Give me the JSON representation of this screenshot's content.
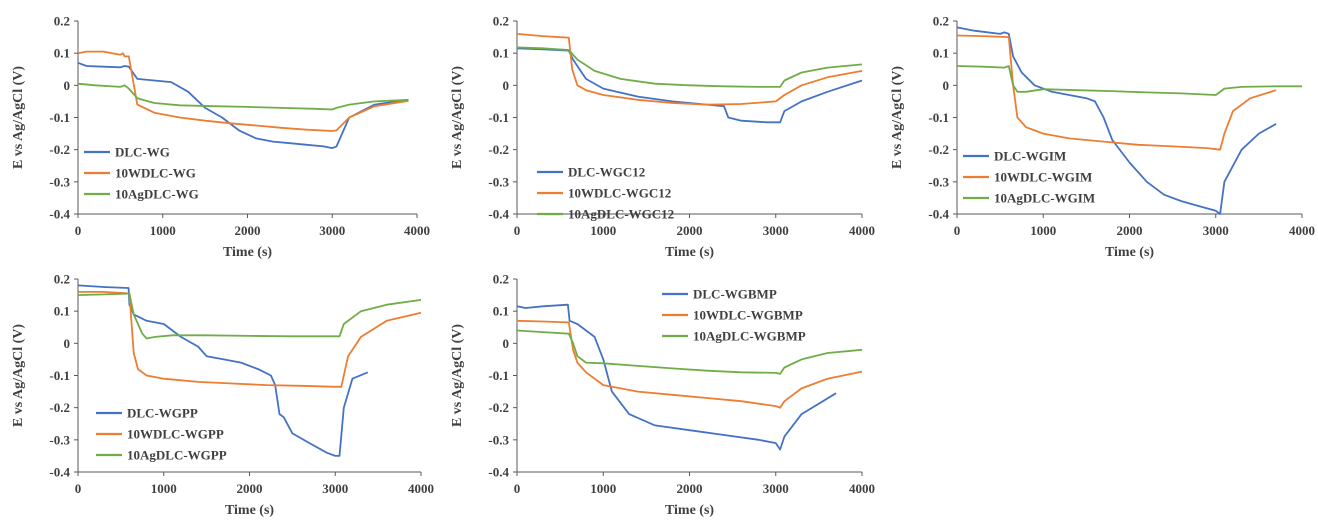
{
  "chart_data": [
    {
      "type": "line",
      "xlabel": "Time (s)",
      "ylabel": "E vs Ag/AgCl (V)",
      "xlim": [
        0,
        4000
      ],
      "ylim": [
        -0.4,
        0.2
      ],
      "xticks": [
        0,
        1000,
        2000,
        3000,
        4000
      ],
      "yticks": [
        0.2,
        0.1,
        0,
        -0.1,
        -0.2,
        -0.3,
        -0.4
      ],
      "ytick_labels": [
        "0.2",
        "0.1",
        "0",
        "-0.1",
        "-0.2",
        "-0.3",
        "-0.4"
      ],
      "legend": "bottom-left",
      "series": [
        {
          "name": "DLC-WG",
          "color": "#4472C4",
          "x": [
            0,
            100,
            300,
            500,
            550,
            600,
            700,
            900,
            1100,
            1300,
            1500,
            1700,
            1900,
            2100,
            2300,
            2500,
            2700,
            2900,
            3000,
            3050,
            3200,
            3500,
            3900
          ],
          "y": [
            0.07,
            0.06,
            0.058,
            0.056,
            0.06,
            0.058,
            0.02,
            0.015,
            0.01,
            -0.02,
            -0.07,
            -0.1,
            -0.14,
            -0.165,
            -0.175,
            -0.18,
            -0.185,
            -0.19,
            -0.195,
            -0.19,
            -0.1,
            -0.06,
            -0.045
          ]
        },
        {
          "name": "10WDLC-WG",
          "color": "#ED7D31",
          "x": [
            0,
            100,
            300,
            500,
            530,
            550,
            600,
            700,
            900,
            1200,
            1500,
            1800,
            2100,
            2400,
            2700,
            3000,
            3050,
            3200,
            3500,
            3900
          ],
          "y": [
            0.1,
            0.105,
            0.105,
            0.095,
            0.1,
            0.09,
            0.09,
            -0.06,
            -0.085,
            -0.1,
            -0.11,
            -0.118,
            -0.125,
            -0.132,
            -0.138,
            -0.142,
            -0.14,
            -0.1,
            -0.065,
            -0.048
          ]
        },
        {
          "name": "10AgDLC-WG",
          "color": "#70AD47",
          "x": [
            0,
            200,
            500,
            550,
            600,
            700,
            900,
            1200,
            1600,
            2000,
            2400,
            2800,
            3000,
            3050,
            3200,
            3500,
            3900
          ],
          "y": [
            0.005,
            0.0,
            -0.005,
            0.0,
            -0.01,
            -0.04,
            -0.055,
            -0.062,
            -0.065,
            -0.067,
            -0.07,
            -0.073,
            -0.075,
            -0.07,
            -0.06,
            -0.05,
            -0.045
          ]
        }
      ]
    },
    {
      "type": "line",
      "xlabel": "Time (s)",
      "ylabel": "E vs Ag/AgCl (V)",
      "xlim": [
        0,
        4000
      ],
      "ylim": [
        -0.4,
        0.2
      ],
      "xticks": [
        0,
        1000,
        2000,
        3000,
        4000
      ],
      "yticks": [
        0.2,
        0.1,
        0,
        -0.1,
        -0.2,
        -0.3,
        -0.4
      ],
      "ytick_labels": [
        "0.2",
        "0.1",
        "0",
        "-0.1",
        "-0.2",
        "-0.3",
        "-0.4"
      ],
      "legend": "bottom-left",
      "series": [
        {
          "name": "DLC-WGC12",
          "color": "#4472C4",
          "x": [
            0,
            300,
            600,
            650,
            800,
            1000,
            1400,
            1800,
            2200,
            2400,
            2450,
            2600,
            2900,
            3050,
            3100,
            3300,
            3600,
            4000
          ],
          "y": [
            0.115,
            0.112,
            0.108,
            0.08,
            0.02,
            -0.01,
            -0.035,
            -0.05,
            -0.06,
            -0.065,
            -0.1,
            -0.11,
            -0.115,
            -0.115,
            -0.08,
            -0.05,
            -0.02,
            0.015
          ]
        },
        {
          "name": "10WDLC-WGC12",
          "color": "#ED7D31",
          "x": [
            0,
            300,
            600,
            640,
            700,
            800,
            1000,
            1400,
            1800,
            2200,
            2600,
            3000,
            3100,
            3300,
            3600,
            4000
          ],
          "y": [
            0.16,
            0.153,
            0.148,
            0.05,
            0.0,
            -0.015,
            -0.03,
            -0.045,
            -0.055,
            -0.06,
            -0.058,
            -0.05,
            -0.03,
            0.0,
            0.025,
            0.045
          ]
        },
        {
          "name": "10AgDLC-WGC12",
          "color": "#70AD47",
          "x": [
            0,
            300,
            600,
            700,
            900,
            1200,
            1600,
            2000,
            2400,
            2800,
            3050,
            3100,
            3300,
            3600,
            4000
          ],
          "y": [
            0.118,
            0.115,
            0.11,
            0.08,
            0.045,
            0.02,
            0.005,
            0.0,
            -0.003,
            -0.005,
            -0.005,
            0.015,
            0.04,
            0.055,
            0.065
          ]
        }
      ]
    },
    {
      "type": "line",
      "xlabel": "Time (s)",
      "ylabel": "E vs Ag/AgCl (V)",
      "xlim": [
        0,
        4000
      ],
      "ylim": [
        -0.4,
        0.2
      ],
      "xticks": [
        0,
        1000,
        2000,
        3000,
        4000
      ],
      "yticks": [
        0.2,
        0.1,
        0,
        -0.1,
        -0.2,
        -0.3,
        -0.4
      ],
      "ytick_labels": [
        "0.2",
        "0.1",
        "0",
        "-0.1",
        "-0.2",
        "-0.3",
        "-0.4"
      ],
      "legend": "bottom-left",
      "series": [
        {
          "name": "DLC-WGIM",
          "color": "#4472C4",
          "x": [
            0,
            200,
            500,
            550,
            600,
            650,
            750,
            900,
            1100,
            1300,
            1500,
            1600,
            1700,
            1800,
            2000,
            2200,
            2400,
            2600,
            2800,
            3000,
            3050,
            3100,
            3300,
            3500,
            3700
          ],
          "y": [
            0.18,
            0.17,
            0.16,
            0.165,
            0.16,
            0.09,
            0.04,
            0.0,
            -0.02,
            -0.03,
            -0.04,
            -0.05,
            -0.1,
            -0.17,
            -0.24,
            -0.3,
            -0.34,
            -0.36,
            -0.375,
            -0.39,
            -0.4,
            -0.3,
            -0.2,
            -0.15,
            -0.12
          ]
        },
        {
          "name": "10WDLC-WGIM",
          "color": "#ED7D31",
          "x": [
            0,
            300,
            600,
            650,
            700,
            800,
            1000,
            1300,
            1700,
            2100,
            2500,
            2900,
            3050,
            3100,
            3200,
            3400,
            3700
          ],
          "y": [
            0.155,
            0.153,
            0.15,
            0.0,
            -0.1,
            -0.13,
            -0.15,
            -0.165,
            -0.175,
            -0.185,
            -0.19,
            -0.195,
            -0.2,
            -0.15,
            -0.08,
            -0.04,
            -0.015
          ]
        },
        {
          "name": "10AgDLC-WGIM",
          "color": "#70AD47",
          "x": [
            0,
            300,
            550,
            600,
            650,
            700,
            800,
            1000,
            1400,
            1800,
            2200,
            2600,
            3000,
            3100,
            3300,
            3700,
            4000
          ],
          "y": [
            0.06,
            0.058,
            0.055,
            0.06,
            0.0,
            -0.02,
            -0.02,
            -0.012,
            -0.015,
            -0.018,
            -0.022,
            -0.025,
            -0.03,
            -0.01,
            -0.005,
            -0.003,
            -0.003
          ]
        }
      ]
    },
    {
      "type": "line",
      "xlabel": "Time (s)",
      "ylabel": "E vs Ag/AgCl (V)",
      "xlim": [
        0,
        4000
      ],
      "ylim": [
        -0.4,
        0.2
      ],
      "xticks": [
        0,
        1000,
        2000,
        3000,
        4000
      ],
      "yticks": [
        0.2,
        0.1,
        0,
        -0.1,
        -0.2,
        -0.3,
        -0.4
      ],
      "ytick_labels": [
        "0.2",
        "0.1",
        "0",
        "-0.1",
        "-0.2",
        "-0.3",
        "-0.4"
      ],
      "legend": "bottom-left",
      "series": [
        {
          "name": "DLC-WGPP",
          "color": "#4472C4",
          "x": [
            0,
            300,
            590,
            600,
            650,
            800,
            1000,
            1200,
            1400,
            1500,
            1700,
            1900,
            2100,
            2250,
            2300,
            2350,
            2400,
            2500,
            2700,
            2900,
            3000,
            3050,
            3100,
            3200,
            3380
          ],
          "y": [
            0.18,
            0.175,
            0.172,
            0.12,
            0.09,
            0.07,
            0.06,
            0.02,
            -0.01,
            -0.04,
            -0.05,
            -0.06,
            -0.08,
            -0.1,
            -0.13,
            -0.22,
            -0.23,
            -0.28,
            -0.31,
            -0.34,
            -0.35,
            -0.35,
            -0.2,
            -0.11,
            -0.09
          ]
        },
        {
          "name": "10WDLC-WGPP",
          "color": "#ED7D31",
          "x": [
            0,
            300,
            600,
            650,
            700,
            800,
            1000,
            1400,
            1800,
            2200,
            2600,
            3000,
            3070,
            3150,
            3300,
            3600,
            4000
          ],
          "y": [
            0.16,
            0.16,
            0.155,
            -0.03,
            -0.08,
            -0.1,
            -0.11,
            -0.12,
            -0.125,
            -0.13,
            -0.132,
            -0.135,
            -0.135,
            -0.04,
            0.02,
            0.07,
            0.095
          ]
        },
        {
          "name": "10AgDLC-WGPP",
          "color": "#70AD47",
          "x": [
            0,
            300,
            600,
            650,
            750,
            800,
            900,
            1100,
            1500,
            2000,
            2500,
            3000,
            3050,
            3100,
            3300,
            3600,
            4000
          ],
          "y": [
            0.15,
            0.152,
            0.155,
            0.09,
            0.03,
            0.015,
            0.02,
            0.025,
            0.025,
            0.023,
            0.022,
            0.022,
            0.022,
            0.06,
            0.1,
            0.12,
            0.135
          ]
        }
      ]
    },
    {
      "type": "line",
      "xlabel": "Time (s)",
      "ylabel": "E vs Ag/AgCl (V)",
      "xlim": [
        0,
        4000
      ],
      "ylim": [
        -0.4,
        0.2
      ],
      "xticks": [
        0,
        1000,
        2000,
        3000,
        4000
      ],
      "yticks": [
        0.2,
        0.1,
        0,
        -0.1,
        -0.2,
        -0.3,
        -0.4
      ],
      "ytick_labels": [
        "0.2",
        "0.1",
        "0",
        "-0.1",
        "-0.2",
        "-0.3",
        "-0.4"
      ],
      "legend": "top-right",
      "series": [
        {
          "name": "DLC-WGBMP",
          "color": "#4472C4",
          "x": [
            0,
            100,
            300,
            590,
            610,
            700,
            900,
            1000,
            1100,
            1300,
            1600,
            2000,
            2400,
            2800,
            3000,
            3050,
            3100,
            3300,
            3700
          ],
          "y": [
            0.115,
            0.11,
            0.115,
            0.12,
            0.07,
            0.06,
            0.02,
            -0.05,
            -0.15,
            -0.22,
            -0.255,
            -0.27,
            -0.285,
            -0.3,
            -0.31,
            -0.33,
            -0.29,
            -0.22,
            -0.155
          ]
        },
        {
          "name": "10WDLC-WGBMP",
          "color": "#ED7D31",
          "x": [
            0,
            300,
            600,
            650,
            700,
            800,
            1000,
            1400,
            1800,
            2200,
            2600,
            3000,
            3050,
            3100,
            3300,
            3600,
            4000
          ],
          "y": [
            0.07,
            0.068,
            0.065,
            -0.02,
            -0.06,
            -0.09,
            -0.13,
            -0.15,
            -0.16,
            -0.17,
            -0.18,
            -0.195,
            -0.2,
            -0.18,
            -0.14,
            -0.11,
            -0.088
          ]
        },
        {
          "name": "10AgDLC-WGBMP",
          "color": "#70AD47",
          "x": [
            0,
            300,
            600,
            650,
            700,
            800,
            1000,
            1400,
            1800,
            2200,
            2600,
            3000,
            3050,
            3100,
            3300,
            3600,
            4000
          ],
          "y": [
            0.04,
            0.035,
            0.03,
            0.0,
            -0.04,
            -0.06,
            -0.062,
            -0.07,
            -0.078,
            -0.085,
            -0.09,
            -0.092,
            -0.095,
            -0.075,
            -0.05,
            -0.03,
            -0.02
          ]
        }
      ]
    }
  ]
}
